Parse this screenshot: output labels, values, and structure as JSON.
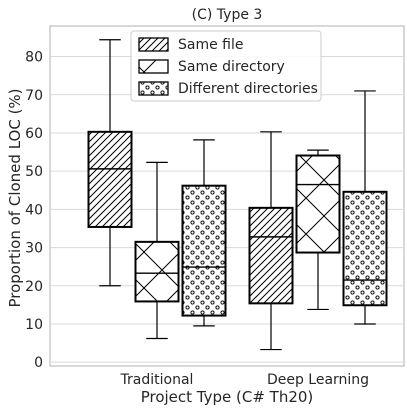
{
  "chart_data": {
    "type": "box",
    "title": "(C) Type 3",
    "xlabel": "Project Type (C# Th20)",
    "ylabel": "Proportion of Cloned LOC (%)",
    "ylim": [
      -1,
      88
    ],
    "yticks": [
      0,
      10,
      20,
      30,
      40,
      50,
      60,
      70,
      80
    ],
    "grid": true,
    "legend_position": "top-center",
    "categories": [
      "Traditional",
      "Deep Learning"
    ],
    "series": [
      {
        "name": "Same file",
        "hatch": "diagonal",
        "boxes": [
          {
            "min": 20.0,
            "q1": 35.4,
            "median": 50.6,
            "q3": 60.3,
            "max": 84.4
          },
          {
            "min": 3.3,
            "q1": 15.4,
            "median": 32.8,
            "q3": 40.4,
            "max": 60.3
          }
        ]
      },
      {
        "name": "Same directory",
        "hatch": "cross",
        "boxes": [
          {
            "min": 6.2,
            "q1": 15.9,
            "median": 23.3,
            "q3": 31.5,
            "max": 52.3
          },
          {
            "min": 13.8,
            "q1": 28.7,
            "median": 46.5,
            "q3": 54.1,
            "max": 55.5
          }
        ]
      },
      {
        "name": "Different directories",
        "hatch": "dots",
        "boxes": [
          {
            "min": 9.5,
            "q1": 12.2,
            "median": 24.9,
            "q3": 46.2,
            "max": 58.2
          },
          {
            "min": 10.0,
            "q1": 14.9,
            "median": 21.5,
            "q3": 44.6,
            "max": 71.0
          }
        ]
      }
    ]
  }
}
